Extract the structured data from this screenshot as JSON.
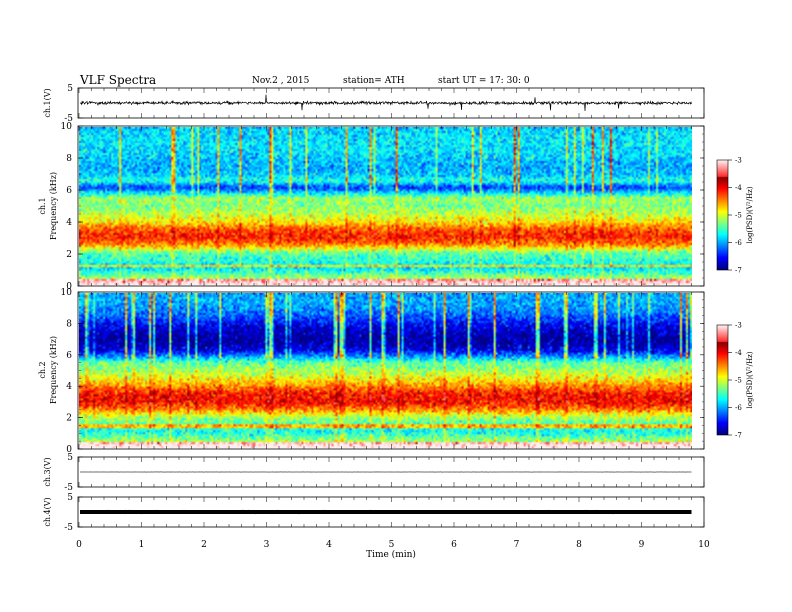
{
  "header": {
    "title": "VLF  Spectra",
    "date": "Nov.2  , 2015",
    "station": "station= ATH",
    "start": "start  UT  =    17: 30: 0"
  },
  "chart_data": [
    {
      "type": "line",
      "name": "ch1-waveform",
      "ylabel": "ch.1(V)",
      "ylim": [
        -5,
        5
      ],
      "yticks": [
        "5",
        "-5"
      ],
      "xlim": [
        0,
        10
      ],
      "baseline": 0.0,
      "trace_xmax": 9.8
    },
    {
      "type": "heatmap",
      "name": "ch1-spectrogram",
      "ylabel": "ch.1\nFrequency  (kHz)",
      "xlim": [
        0,
        10
      ],
      "xmax_data": 9.8,
      "ylim": [
        0,
        10
      ],
      "yticks": [
        "0",
        "2",
        "4",
        "6",
        "8",
        "10"
      ],
      "colorbar": {
        "label": "log(PSD)(V²/Hz)",
        "range": [
          -7,
          -3
        ],
        "ticks": [
          "-3",
          "-4",
          "-5",
          "-6",
          "-7"
        ]
      },
      "profile_freqs_khz": [
        0,
        0.5,
        1,
        1.5,
        2,
        2.5,
        3,
        3.5,
        4,
        4.5,
        5,
        5.5,
        6,
        6.2,
        6.6,
        7,
        7.5,
        8,
        8.5,
        9,
        9.5,
        10
      ],
      "profile_log_psd": [
        -4.8,
        -5.3,
        -5.8,
        -5.6,
        -5.4,
        -4.5,
        -4.1,
        -4.3,
        -4.8,
        -5.1,
        -5.3,
        -5.2,
        -6.1,
        -6.4,
        -5.6,
        -5.9,
        -6.0,
        -5.9,
        -5.8,
        -5.8,
        -5.8,
        -5.9
      ]
    },
    {
      "type": "heatmap",
      "name": "ch2-spectrogram",
      "ylabel": "ch.2\nFrequency  (kHz)",
      "xlim": [
        0,
        10
      ],
      "xmax_data": 9.8,
      "ylim": [
        0,
        10
      ],
      "yticks": [
        "0",
        "2",
        "4",
        "6",
        "8",
        "10"
      ],
      "colorbar": {
        "label": "log(PSD)(V²/Hz)",
        "range": [
          -7,
          -3
        ],
        "ticks": [
          "-3",
          "-4",
          "-5",
          "-6",
          "-7"
        ]
      },
      "profile_freqs_khz": [
        0,
        0.5,
        1,
        1.5,
        2,
        2.5,
        3,
        3.5,
        4,
        4.5,
        5,
        5.5,
        6,
        6.3,
        6.6,
        7,
        7.5,
        8,
        8.5,
        9,
        9.5,
        10
      ],
      "profile_log_psd": [
        -4.6,
        -5.3,
        -5.7,
        -5.5,
        -5.1,
        -4.4,
        -4.0,
        -4.1,
        -4.5,
        -4.9,
        -5.2,
        -5.4,
        -6.2,
        -6.6,
        -6.8,
        -6.9,
        -6.8,
        -6.6,
        -6.3,
        -6.1,
        -6.0,
        -6.0
      ]
    },
    {
      "type": "line",
      "name": "ch3-waveform",
      "ylabel": "ch.3(V)",
      "ylim": [
        -5,
        5
      ],
      "yticks": [
        "5",
        "-5"
      ],
      "xlim": [
        0,
        10
      ],
      "baseline": 0.0,
      "trace_xmax": 9.8
    },
    {
      "type": "line",
      "name": "ch4-waveform",
      "ylabel": "ch.4(V)",
      "ylim": [
        -5,
        5
      ],
      "yticks": [
        "5",
        "-5"
      ],
      "xlim": [
        0,
        10
      ],
      "baseline": 0.0,
      "trace_xmax": 9.8
    }
  ],
  "xaxis": {
    "label": "Time  (min)",
    "ticks": [
      "0",
      "1",
      "2",
      "3",
      "4",
      "5",
      "6",
      "7",
      "8",
      "9",
      "10"
    ]
  }
}
